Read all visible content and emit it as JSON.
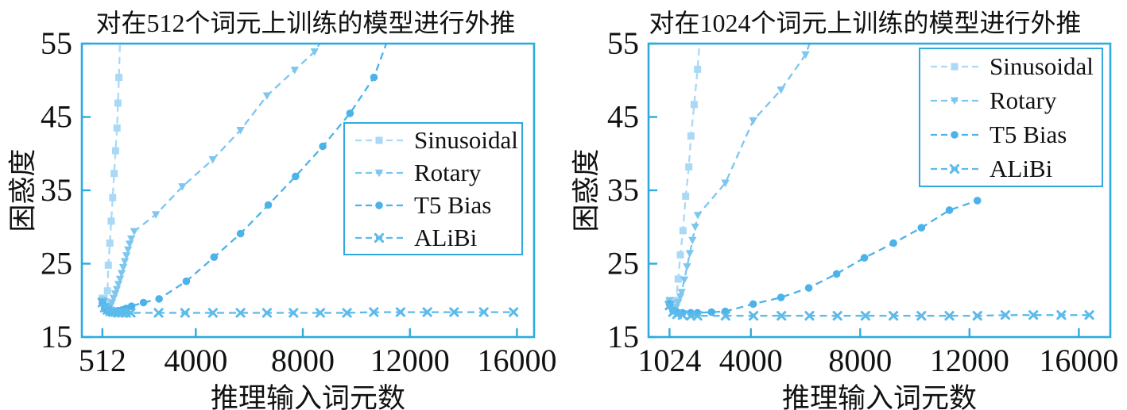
{
  "figure": {
    "background": "#ffffff",
    "description_visible_text_only": true
  },
  "colors": {
    "frame": "#2eaae1",
    "tick": "#2eaae1",
    "text": "#111111",
    "sinusoidal": "#a9d9f5",
    "rotary": "#7cc6ef",
    "t5_bias": "#4bb3e9",
    "alibi": "#5cbbeb"
  },
  "chart_data": [
    {
      "type": "line",
      "title": "对在512个词元上训练的模型进行外推",
      "xlabel": "推理输入词元数",
      "ylabel": "困惑度",
      "xlim": [
        -256,
        16640
      ],
      "ylim": [
        15,
        55
      ],
      "grid": false,
      "legend_position": "inside middle-right",
      "x_ticks": [
        {
          "value": 512,
          "label": "512"
        },
        {
          "value": 4000,
          "label": "4000"
        },
        {
          "value": 8000,
          "label": "8000"
        },
        {
          "value": 12000,
          "label": "12000"
        },
        {
          "value": 16000,
          "label": "16000"
        }
      ],
      "y_ticks": [
        {
          "value": 15,
          "label": "15"
        },
        {
          "value": 25,
          "label": "25"
        },
        {
          "value": 35,
          "label": "35"
        },
        {
          "value": 45,
          "label": "45"
        },
        {
          "value": 55,
          "label": "55"
        }
      ],
      "series": [
        {
          "name": "Sinusoidal",
          "color": "#a9d9f5",
          "marker": "square",
          "linestyle": "dashed",
          "points": [
            [
              512,
              20.3
            ],
            [
              560,
              19.6
            ],
            [
              610,
              19.3
            ],
            [
              660,
              19.8
            ],
            [
              700,
              21.3
            ],
            [
              732,
              24.8
            ],
            [
              790,
              27.8
            ],
            [
              841,
              30.8
            ],
            [
              895,
              34.0
            ],
            [
              950,
              37.3
            ],
            [
              1004,
              40.4
            ],
            [
              1058,
              43.5
            ],
            [
              1092,
              46.9
            ],
            [
              1127,
              50.4
            ],
            [
              1180,
              56.5
            ]
          ]
        },
        {
          "name": "Rotary",
          "color": "#7cc6ef",
          "marker": "triangle-down",
          "linestyle": "dashed",
          "points": [
            [
              512,
              20.0
            ],
            [
              570,
              19.1
            ],
            [
              630,
              18.7
            ],
            [
              690,
              18.6
            ],
            [
              750,
              18.8
            ],
            [
              810,
              19.2
            ],
            [
              870,
              19.7
            ],
            [
              930,
              20.3
            ],
            [
              990,
              20.9
            ],
            [
              1050,
              21.5
            ],
            [
              1110,
              22.2
            ],
            [
              1170,
              22.9
            ],
            [
              1230,
              23.7
            ],
            [
              1290,
              24.5
            ],
            [
              1350,
              25.3
            ],
            [
              1410,
              26.1
            ],
            [
              1470,
              26.9
            ],
            [
              1530,
              27.7
            ],
            [
              1590,
              28.4
            ],
            [
              1700,
              29.4
            ],
            [
              2510,
              31.7
            ],
            [
              3498,
              35.5
            ],
            [
              4635,
              39.2
            ],
            [
              5672,
              43.2
            ],
            [
              6660,
              47.9
            ],
            [
              7697,
              51.4
            ],
            [
              8438,
              53.9
            ],
            [
              8900,
              56.5
            ]
          ]
        },
        {
          "name": "T5 Bias",
          "color": "#4bb3e9",
          "marker": "circle",
          "linestyle": "dashed",
          "points": [
            [
              512,
              19.7
            ],
            [
              600,
              18.9
            ],
            [
              700,
              18.6
            ],
            [
              800,
              18.5
            ],
            [
              900,
              18.5
            ],
            [
              1000,
              18.5
            ],
            [
              1100,
              18.6
            ],
            [
              1250,
              18.7
            ],
            [
              1400,
              18.9
            ],
            [
              1600,
              19.2
            ],
            [
              2048,
              19.7
            ],
            [
              2629,
              20.2
            ],
            [
              3647,
              22.6
            ],
            [
              4684,
              25.9
            ],
            [
              5672,
              29.1
            ],
            [
              6709,
              33.0
            ],
            [
              7727,
              36.9
            ],
            [
              8745,
              41.0
            ],
            [
              9763,
              45.5
            ],
            [
              10655,
              50.4
            ],
            [
              11200,
              55.8
            ]
          ]
        },
        {
          "name": "ALiBi",
          "color": "#5cbbeb",
          "marker": "x",
          "linestyle": "dashed",
          "points": [
            [
              512,
              19.7
            ],
            [
              600,
              19.0
            ],
            [
              700,
              18.7
            ],
            [
              800,
              18.5
            ],
            [
              900,
              18.4
            ],
            [
              1000,
              18.4
            ],
            [
              1100,
              18.3
            ],
            [
              1250,
              18.3
            ],
            [
              1400,
              18.3
            ],
            [
              1570,
              18.3
            ],
            [
              2610,
              18.3
            ],
            [
              3600,
              18.3
            ],
            [
              4640,
              18.3
            ],
            [
              5670,
              18.3
            ],
            [
              6660,
              18.3
            ],
            [
              7650,
              18.3
            ],
            [
              8650,
              18.3
            ],
            [
              9650,
              18.3
            ],
            [
              10650,
              18.4
            ],
            [
              11650,
              18.4
            ],
            [
              12650,
              18.4
            ],
            [
              13650,
              18.4
            ],
            [
              14760,
              18.4
            ],
            [
              15872,
              18.4
            ]
          ]
        }
      ]
    },
    {
      "type": "line",
      "title": "对在1024个词元上训练的模型进行外推",
      "xlabel": "推理输入词元数",
      "ylabel": "困惑度",
      "xlim": [
        256,
        17152
      ],
      "ylim": [
        15,
        55
      ],
      "grid": false,
      "legend_position": "inside top-right",
      "x_ticks": [
        {
          "value": 1024,
          "label": "1024"
        },
        {
          "value": 4000,
          "label": "4000"
        },
        {
          "value": 8000,
          "label": "8000"
        },
        {
          "value": 12000,
          "label": "12000"
        },
        {
          "value": 16000,
          "label": "16000"
        }
      ],
      "y_ticks": [
        {
          "value": 15,
          "label": "15"
        },
        {
          "value": 25,
          "label": "25"
        },
        {
          "value": 35,
          "label": "35"
        },
        {
          "value": 45,
          "label": "45"
        },
        {
          "value": 55,
          "label": "55"
        }
      ],
      "series": [
        {
          "name": "Sinusoidal",
          "color": "#a9d9f5",
          "marker": "square",
          "linestyle": "dashed",
          "points": [
            [
              1024,
              19.9
            ],
            [
              1100,
              19.2
            ],
            [
              1180,
              19.0
            ],
            [
              1260,
              20.0
            ],
            [
              1341,
              22.9
            ],
            [
              1419,
              26.2
            ],
            [
              1516,
              29.5
            ],
            [
              1613,
              34.2
            ],
            [
              1730,
              38.2
            ],
            [
              1808,
              42.4
            ],
            [
              1924,
              46.7
            ],
            [
              2050,
              51.5
            ],
            [
              2160,
              57.0
            ]
          ]
        },
        {
          "name": "Rotary",
          "color": "#7cc6ef",
          "marker": "triangle-down",
          "linestyle": "dashed",
          "points": [
            [
              1024,
              20.0
            ],
            [
              1100,
              19.0
            ],
            [
              1180,
              18.7
            ],
            [
              1260,
              19.0
            ],
            [
              1340,
              19.7
            ],
            [
              1420,
              20.5
            ],
            [
              1467,
              21.1
            ],
            [
              1566,
              22.8
            ],
            [
              1665,
              24.6
            ],
            [
              1764,
              26.4
            ],
            [
              1863,
              28.2
            ],
            [
              1962,
              30.0
            ],
            [
              2060,
              31.6
            ],
            [
              3066,
              36.0
            ],
            [
              4084,
              44.5
            ],
            [
              5101,
              48.7
            ],
            [
              6000,
              53.5
            ],
            [
              6350,
              57.0
            ]
          ]
        },
        {
          "name": "T5 Bias",
          "color": "#4bb3e9",
          "marker": "circle",
          "linestyle": "dashed",
          "points": [
            [
              1024,
              19.5
            ],
            [
              1150,
              18.6
            ],
            [
              1300,
              18.4
            ],
            [
              1500,
              18.3
            ],
            [
              1800,
              18.3
            ],
            [
              2048,
              18.3
            ],
            [
              2560,
              18.4
            ],
            [
              3066,
              18.5
            ],
            [
              4084,
              19.5
            ],
            [
              5101,
              20.4
            ],
            [
              6119,
              21.7
            ],
            [
              7137,
              23.6
            ],
            [
              8154,
              25.8
            ],
            [
              9216,
              27.8
            ],
            [
              10240,
              29.9
            ],
            [
              11264,
              32.3
            ],
            [
              12288,
              33.6
            ]
          ]
        },
        {
          "name": "ALiBi",
          "color": "#5cbbeb",
          "marker": "x",
          "linestyle": "dashed",
          "points": [
            [
              1024,
              19.3
            ],
            [
              1150,
              18.4
            ],
            [
              1300,
              18.1
            ],
            [
              1500,
              18.0
            ],
            [
              1800,
              17.9
            ],
            [
              2048,
              17.9
            ],
            [
              3072,
              17.9
            ],
            [
              4096,
              17.9
            ],
            [
              5120,
              17.9
            ],
            [
              6144,
              17.9
            ],
            [
              7168,
              17.9
            ],
            [
              8192,
              17.9
            ],
            [
              9216,
              17.9
            ],
            [
              10240,
              17.9
            ],
            [
              11264,
              17.9
            ],
            [
              12288,
              17.9
            ],
            [
              13312,
              18.0
            ],
            [
              14336,
              18.0
            ],
            [
              15360,
              18.0
            ],
            [
              16384,
              18.0
            ]
          ]
        }
      ]
    }
  ]
}
